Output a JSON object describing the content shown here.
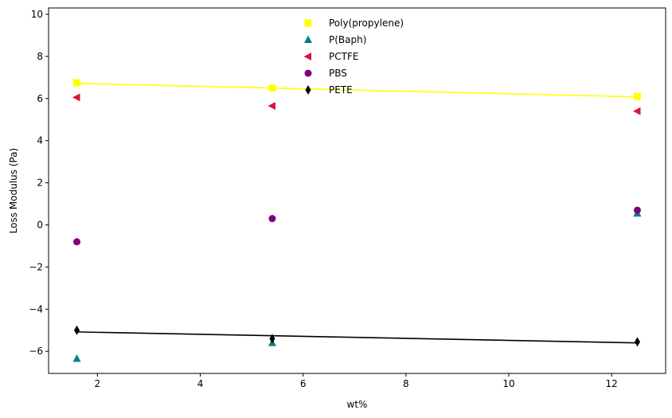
{
  "chart_data": {
    "type": "scatter",
    "title": "",
    "xlabel": "wt%",
    "ylabel": "Loss Modulus (Pa)",
    "xlim": [
      1.05,
      13.05
    ],
    "ylim": [
      -7.05,
      10.3
    ],
    "xticks": [
      2,
      4,
      6,
      8,
      10,
      12
    ],
    "yticks": [
      -6,
      -4,
      -2,
      0,
      2,
      4,
      6,
      8,
      10
    ],
    "xtick_labels": [
      "2",
      "4",
      "6",
      "8",
      "10",
      "12"
    ],
    "ytick_labels": [
      "−6",
      "−4",
      "−2",
      "0",
      "2",
      "4",
      "6",
      "8",
      "10"
    ],
    "grid": false,
    "legend_position": "top-center",
    "x": [
      1.6,
      5.4,
      12.5
    ],
    "series": [
      {
        "name": "Poly(propylene)",
        "marker": "square",
        "color": "#ffff00",
        "values": [
          6.75,
          6.5,
          6.1
        ],
        "fit": {
          "x": [
            1.6,
            12.5
          ],
          "y": [
            6.72,
            6.08
          ],
          "color": "#ffff00"
        }
      },
      {
        "name": "P(Baph)",
        "marker": "triangle-up",
        "color": "#008080",
        "values": [
          -6.35,
          -5.6,
          0.55
        ]
      },
      {
        "name": "PCTFE",
        "marker": "triangle-left",
        "color": "#dc143c",
        "values": [
          6.05,
          5.65,
          5.4
        ]
      },
      {
        "name": "PBS",
        "marker": "circle",
        "color": "#800080",
        "values": [
          -0.8,
          0.3,
          0.7
        ]
      },
      {
        "name": "PETE",
        "marker": "thin-diamond",
        "color": "#000000",
        "values": [
          -5.0,
          -5.4,
          -5.55
        ],
        "fit": {
          "x": [
            1.6,
            12.5
          ],
          "y": [
            -5.08,
            -5.6
          ],
          "color": "#000000"
        }
      }
    ]
  }
}
